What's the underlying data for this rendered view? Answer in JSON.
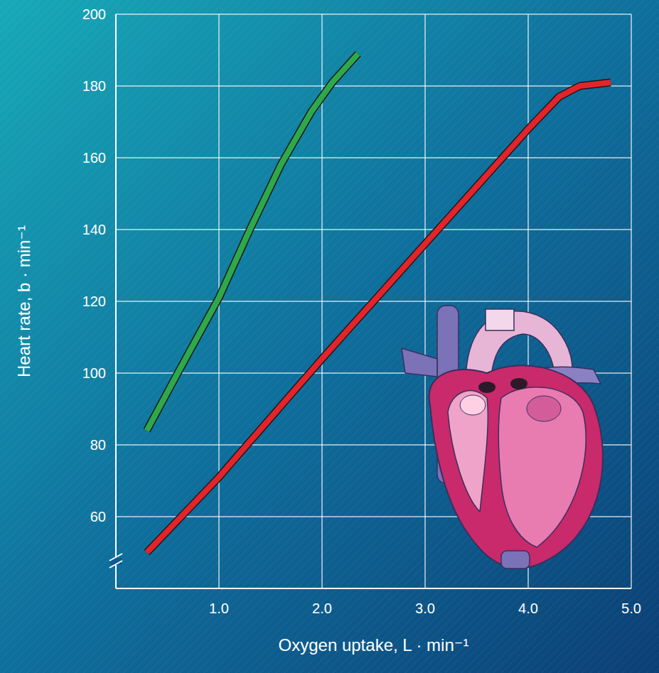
{
  "chart_data": {
    "type": "line",
    "x_label": "Oxygen uptake, L · min⁻¹",
    "y_label": "Heart rate, b · min⁻¹",
    "xlim": [
      0,
      5
    ],
    "xticks": [
      {
        "value": 1,
        "label": "1.0"
      },
      {
        "value": 2,
        "label": "2.0"
      },
      {
        "value": 3,
        "label": "3.0"
      },
      {
        "value": 4,
        "label": "4.0"
      },
      {
        "value": 5,
        "label": "5.0"
      }
    ],
    "ylim": [
      40,
      200
    ],
    "yticks": [
      60,
      80,
      100,
      120,
      140,
      160,
      180,
      200
    ],
    "grid": true,
    "series": [
      {
        "color": "#2fa84a",
        "x": [
          0.3,
          0.6,
          1.0,
          1.3,
          1.6,
          1.9,
          2.1,
          2.35
        ],
        "values": [
          84,
          100,
          121,
          140,
          158,
          173,
          181,
          189
        ]
      },
      {
        "color": "#e3242b",
        "x": [
          0.3,
          1.0,
          2.0,
          3.0,
          4.0,
          4.3,
          4.5,
          4.8
        ],
        "values": [
          50,
          71,
          104,
          136,
          168,
          177,
          180,
          181
        ]
      }
    ]
  }
}
